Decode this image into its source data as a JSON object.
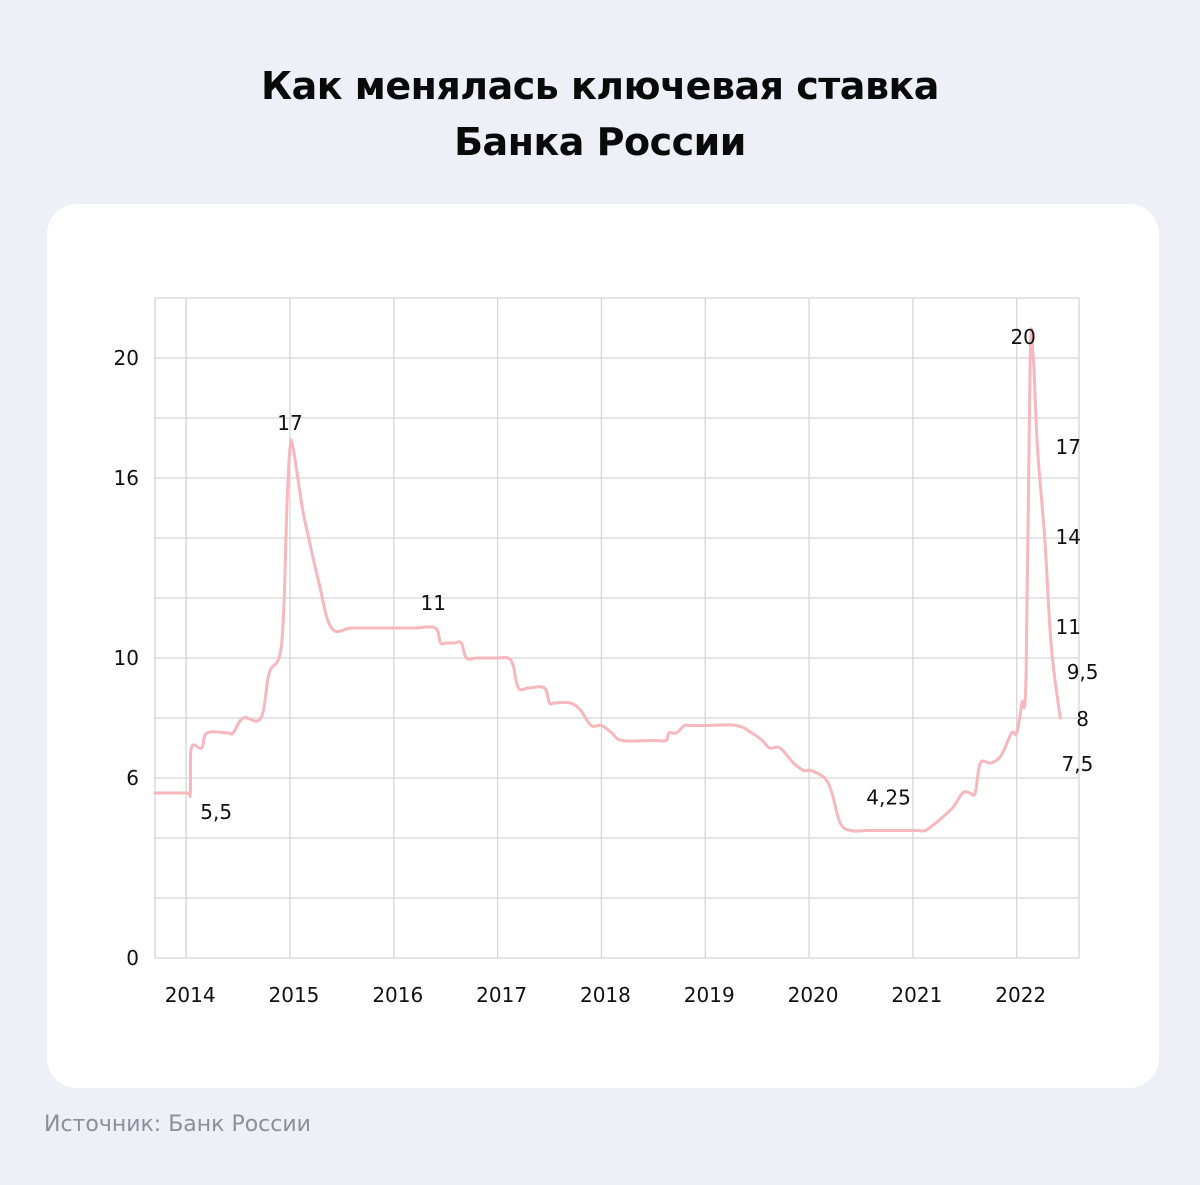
{
  "title": {
    "line1": "Как менялась ключевая ставка",
    "line2": "Банка России"
  },
  "source": "Источник: Банк России",
  "colors": {
    "background": "#edf0f7",
    "card": "#ffffff",
    "line": "#f6b8bd",
    "grid": "#d6d6da"
  },
  "chart_data": {
    "type": "line",
    "title": "Как менялась ключевая ставка Банка России",
    "xlabel": "",
    "ylabel": "",
    "xlim": [
      2013.7,
      2022.6
    ],
    "ylim": [
      0,
      22
    ],
    "x_ticks": [
      2014,
      2015,
      2016,
      2017,
      2018,
      2019,
      2020,
      2021,
      2022
    ],
    "x_tick_labels": [
      "2014",
      "2015",
      "2016",
      "2017",
      "2018",
      "2019",
      "2020",
      "2021",
      "2022"
    ],
    "y_ticks": [
      0,
      6,
      10,
      16,
      20
    ],
    "y_tick_labels": [
      "0",
      "6",
      "10",
      "16",
      "20"
    ],
    "grid": true,
    "series": [
      {
        "values_x": [
          2013.7,
          2014.0,
          2014.04,
          2014.05,
          2014.15,
          2014.2,
          2014.4,
          2014.45,
          2014.55,
          2014.72,
          2014.8,
          2014.92,
          2014.97,
          2015.0,
          2015.03,
          2015.12,
          2015.18,
          2015.28,
          2015.4,
          2015.6,
          2015.9,
          2016.0,
          2016.2,
          2016.4,
          2016.45,
          2016.5,
          2016.58,
          2016.65,
          2016.7,
          2016.8,
          2017.0,
          2017.1,
          2017.15,
          2017.2,
          2017.3,
          2017.45,
          2017.5,
          2017.55,
          2017.7,
          2017.8,
          2017.9,
          2018.0,
          2018.1,
          2018.2,
          2018.5,
          2018.62,
          2018.65,
          2018.72,
          2018.8,
          2018.85,
          2019.0,
          2019.3,
          2019.45,
          2019.55,
          2019.62,
          2019.72,
          2019.85,
          2019.95,
          2020.02,
          2020.15,
          2020.22,
          2020.3,
          2020.4,
          2020.55,
          2020.7,
          2020.9,
          2021.0,
          2021.05,
          2021.12,
          2021.22,
          2021.38,
          2021.48,
          2021.55,
          2021.6,
          2021.65,
          2021.75,
          2021.85,
          2021.95,
          2022.0,
          2022.05,
          2022.09,
          2022.13,
          2022.16,
          2022.2,
          2022.27,
          2022.32,
          2022.36,
          2022.42
        ],
        "values_y": [
          5.5,
          5.5,
          5.5,
          7.0,
          7.0,
          7.5,
          7.5,
          7.5,
          8.0,
          8.0,
          9.5,
          10.5,
          15.0,
          17.0,
          17.0,
          15.0,
          14.0,
          12.5,
          11.0,
          11.0,
          11.0,
          11.0,
          11.0,
          11.0,
          10.5,
          10.5,
          10.5,
          10.5,
          10.0,
          10.0,
          10.0,
          10.0,
          9.75,
          9.0,
          9.0,
          9.0,
          8.5,
          8.5,
          8.5,
          8.25,
          7.75,
          7.75,
          7.5,
          7.25,
          7.25,
          7.25,
          7.5,
          7.5,
          7.75,
          7.75,
          7.75,
          7.75,
          7.5,
          7.25,
          7.0,
          7.0,
          6.5,
          6.25,
          6.25,
          6.0,
          5.5,
          4.5,
          4.25,
          4.25,
          4.25,
          4.25,
          4.25,
          4.25,
          4.25,
          4.5,
          5.0,
          5.5,
          5.5,
          5.5,
          6.5,
          6.5,
          6.75,
          7.5,
          7.5,
          8.5,
          9.5,
          20.0,
          20.0,
          17.0,
          14.0,
          11.0,
          9.5,
          8.0
        ]
      }
    ],
    "annotations": [
      {
        "text": "5,5",
        "x": 2014.0,
        "y": 5.5
      },
      {
        "text": "17",
        "x": 2015.0,
        "y": 17
      },
      {
        "text": "11",
        "x": 2016.38,
        "y": 11
      },
      {
        "text": "4,25",
        "x": 2020.65,
        "y": 4.25
      },
      {
        "text": "20",
        "x": 2022.12,
        "y": 20
      },
      {
        "text": "17",
        "x": 2022.4,
        "y": 17
      },
      {
        "text": "14",
        "x": 2022.4,
        "y": 14
      },
      {
        "text": "11",
        "x": 2022.4,
        "y": 11
      },
      {
        "text": "9,5",
        "x": 2022.5,
        "y": 9.5
      },
      {
        "text": "8",
        "x": 2022.5,
        "y": 8
      },
      {
        "text": "7,5",
        "x": 2022.45,
        "y": 7.5
      }
    ]
  }
}
